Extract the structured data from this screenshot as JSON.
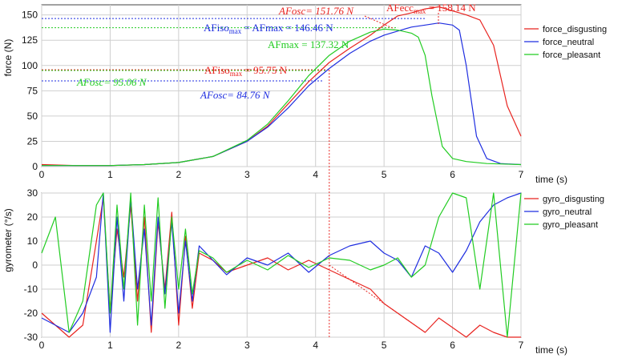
{
  "chart_data": [
    {
      "type": "line",
      "xlabel": "time (s)",
      "ylabel": "force (N)",
      "xlim": [
        0,
        7
      ],
      "ylim": [
        0,
        160
      ],
      "xticks": [
        0,
        1,
        2,
        3,
        4,
        5,
        6,
        7
      ],
      "yticks": [
        0,
        25,
        50,
        75,
        100,
        125,
        150
      ],
      "grid": true,
      "legend_position": "right",
      "series": [
        {
          "name": "force_disgusting",
          "color": "#e8231f",
          "x": [
            0,
            0.5,
            1,
            1.5,
            2,
            2.5,
            3,
            3.3,
            3.6,
            3.9,
            4.2,
            4.5,
            4.8,
            5.0,
            5.2,
            5.4,
            5.6,
            5.8,
            6.0,
            6.2,
            6.4,
            6.6,
            6.8,
            7.0
          ],
          "y": [
            2,
            1,
            1,
            2,
            4,
            10,
            25,
            40,
            62,
            84,
            103,
            117,
            130,
            140,
            149,
            152,
            156,
            158,
            154,
            150,
            145,
            120,
            60,
            30
          ]
        },
        {
          "name": "force_neutral",
          "color": "#1f2ee0",
          "x": [
            0,
            0.5,
            1,
            1.5,
            2,
            2.5,
            3,
            3.3,
            3.6,
            3.9,
            4.2,
            4.5,
            4.8,
            5.0,
            5.2,
            5.4,
            5.6,
            5.8,
            6.0,
            6.1,
            6.2,
            6.35,
            6.5,
            6.7,
            7.0
          ],
          "y": [
            1,
            1,
            1,
            2,
            4,
            10,
            25,
            39,
            58,
            80,
            97,
            112,
            124,
            130,
            134,
            138,
            140,
            142,
            140,
            135,
            100,
            30,
            8,
            3,
            2
          ]
        },
        {
          "name": "force_pleasant",
          "color": "#22cc22",
          "x": [
            0,
            0.5,
            1,
            1.5,
            2,
            2.5,
            3,
            3.3,
            3.6,
            3.9,
            4.2,
            4.5,
            4.8,
            5.0,
            5.2,
            5.4,
            5.5,
            5.6,
            5.7,
            5.85,
            6.0,
            6.2,
            6.5,
            7.0
          ],
          "y": [
            1,
            1,
            1,
            2,
            4,
            10,
            26,
            42,
            65,
            90,
            110,
            124,
            133,
            136,
            135,
            132,
            128,
            110,
            70,
            20,
            8,
            5,
            3,
            2
          ]
        }
      ],
      "annotations": {
        "afiso_max_neutral": "AFiso",
        "afiso_max_neutral_sub": "max",
        "afiso_max_neutral_rest": " = AFmax = 146.46 N",
        "afmax_pleasant": "AFmax = 137.32 N",
        "afosc_pleasant": "AFosc= 95.06 N",
        "afiso_max_disgusting": "AFiso",
        "afiso_max_disgusting_sub": "max",
        "afiso_max_disgusting_rest": " = 95.75 N",
        "afosc_neutral": "AFosc= 84.76 N",
        "afosc_disgusting": "AFosc= 151.76 N",
        "afecc_max_disgusting": "AFecc",
        "afecc_max_disgusting_sub": "max",
        "afecc_max_disgusting_rest": " = 158.14 N",
        "levels": {
          "afiso_neutral": 146.46,
          "afmax_pleasant": 137.32,
          "afiso_disgusting": 95.75,
          "afosc_pleasant": 95.06,
          "afosc_neutral": 84.76,
          "afosc_disgusting": 151.76,
          "afecc_disgusting": 158.14,
          "marker_time": 4.2
        }
      }
    },
    {
      "type": "line",
      "xlabel": "time (s)",
      "ylabel": "gyrometer (°/s)",
      "xlim": [
        0,
        7
      ],
      "ylim": [
        -30,
        30
      ],
      "xticks": [
        0,
        1,
        2,
        3,
        4,
        5,
        6,
        7
      ],
      "yticks": [
        -30,
        -20,
        -10,
        0,
        10,
        20,
        30
      ],
      "grid": true,
      "legend_position": "right",
      "series": [
        {
          "name": "gyro_disgusting",
          "color": "#e8231f",
          "x": [
            0,
            0.2,
            0.4,
            0.6,
            0.8,
            0.9,
            1.0,
            1.1,
            1.2,
            1.3,
            1.4,
            1.5,
            1.6,
            1.7,
            1.8,
            1.9,
            2.0,
            2.1,
            2.2,
            2.3,
            2.5,
            2.7,
            3.0,
            3.3,
            3.6,
            3.9,
            4.2,
            4.5,
            4.8,
            5.0,
            5.2,
            5.4,
            5.6,
            5.8,
            6.0,
            6.2,
            6.4,
            6.6,
            6.8,
            7.0
          ],
          "y": [
            -20,
            -25,
            -30,
            -25,
            10,
            28,
            -20,
            15,
            -5,
            25,
            -15,
            20,
            -28,
            18,
            -10,
            22,
            -25,
            12,
            -18,
            5,
            2,
            -3,
            0,
            3,
            -2,
            2,
            -2,
            -6,
            -10,
            -16,
            -20,
            -24,
            -28,
            -22,
            -26,
            -30,
            -25,
            -28,
            -30,
            -30
          ]
        },
        {
          "name": "gyro_neutral",
          "color": "#1f2ee0",
          "x": [
            0,
            0.2,
            0.4,
            0.6,
            0.8,
            0.9,
            1.0,
            1.1,
            1.2,
            1.3,
            1.4,
            1.5,
            1.6,
            1.7,
            1.8,
            1.9,
            2.0,
            2.1,
            2.2,
            2.3,
            2.5,
            2.7,
            3.0,
            3.3,
            3.6,
            3.9,
            4.2,
            4.5,
            4.8,
            5.0,
            5.2,
            5.4,
            5.6,
            5.8,
            6.0,
            6.2,
            6.4,
            6.6,
            6.8,
            7.0
          ],
          "y": [
            -22,
            -25,
            -28,
            -20,
            -5,
            30,
            -28,
            20,
            -15,
            28,
            -10,
            15,
            -25,
            20,
            -12,
            18,
            -20,
            10,
            -15,
            8,
            2,
            -4,
            3,
            0,
            5,
            -3,
            4,
            8,
            10,
            5,
            2,
            -5,
            8,
            5,
            -3,
            6,
            18,
            25,
            28,
            30
          ]
        },
        {
          "name": "gyro_pleasant",
          "color": "#22cc22",
          "x": [
            0,
            0.2,
            0.4,
            0.6,
            0.8,
            0.9,
            1.0,
            1.1,
            1.2,
            1.3,
            1.4,
            1.5,
            1.6,
            1.7,
            1.8,
            1.9,
            2.0,
            2.1,
            2.2,
            2.3,
            2.5,
            2.7,
            3.0,
            3.3,
            3.6,
            3.9,
            4.2,
            4.5,
            4.8,
            5.0,
            5.2,
            5.4,
            5.6,
            5.8,
            6.0,
            6.2,
            6.4,
            6.6,
            6.8,
            7.0
          ],
          "y": [
            5,
            20,
            -28,
            -15,
            25,
            30,
            -20,
            25,
            -10,
            30,
            -25,
            25,
            -15,
            28,
            -18,
            20,
            -10,
            15,
            -12,
            6,
            3,
            -3,
            2,
            -2,
            4,
            -1,
            3,
            2,
            -2,
            0,
            3,
            -5,
            0,
            20,
            30,
            28,
            -10,
            30,
            -30,
            30
          ]
        }
      ]
    }
  ]
}
